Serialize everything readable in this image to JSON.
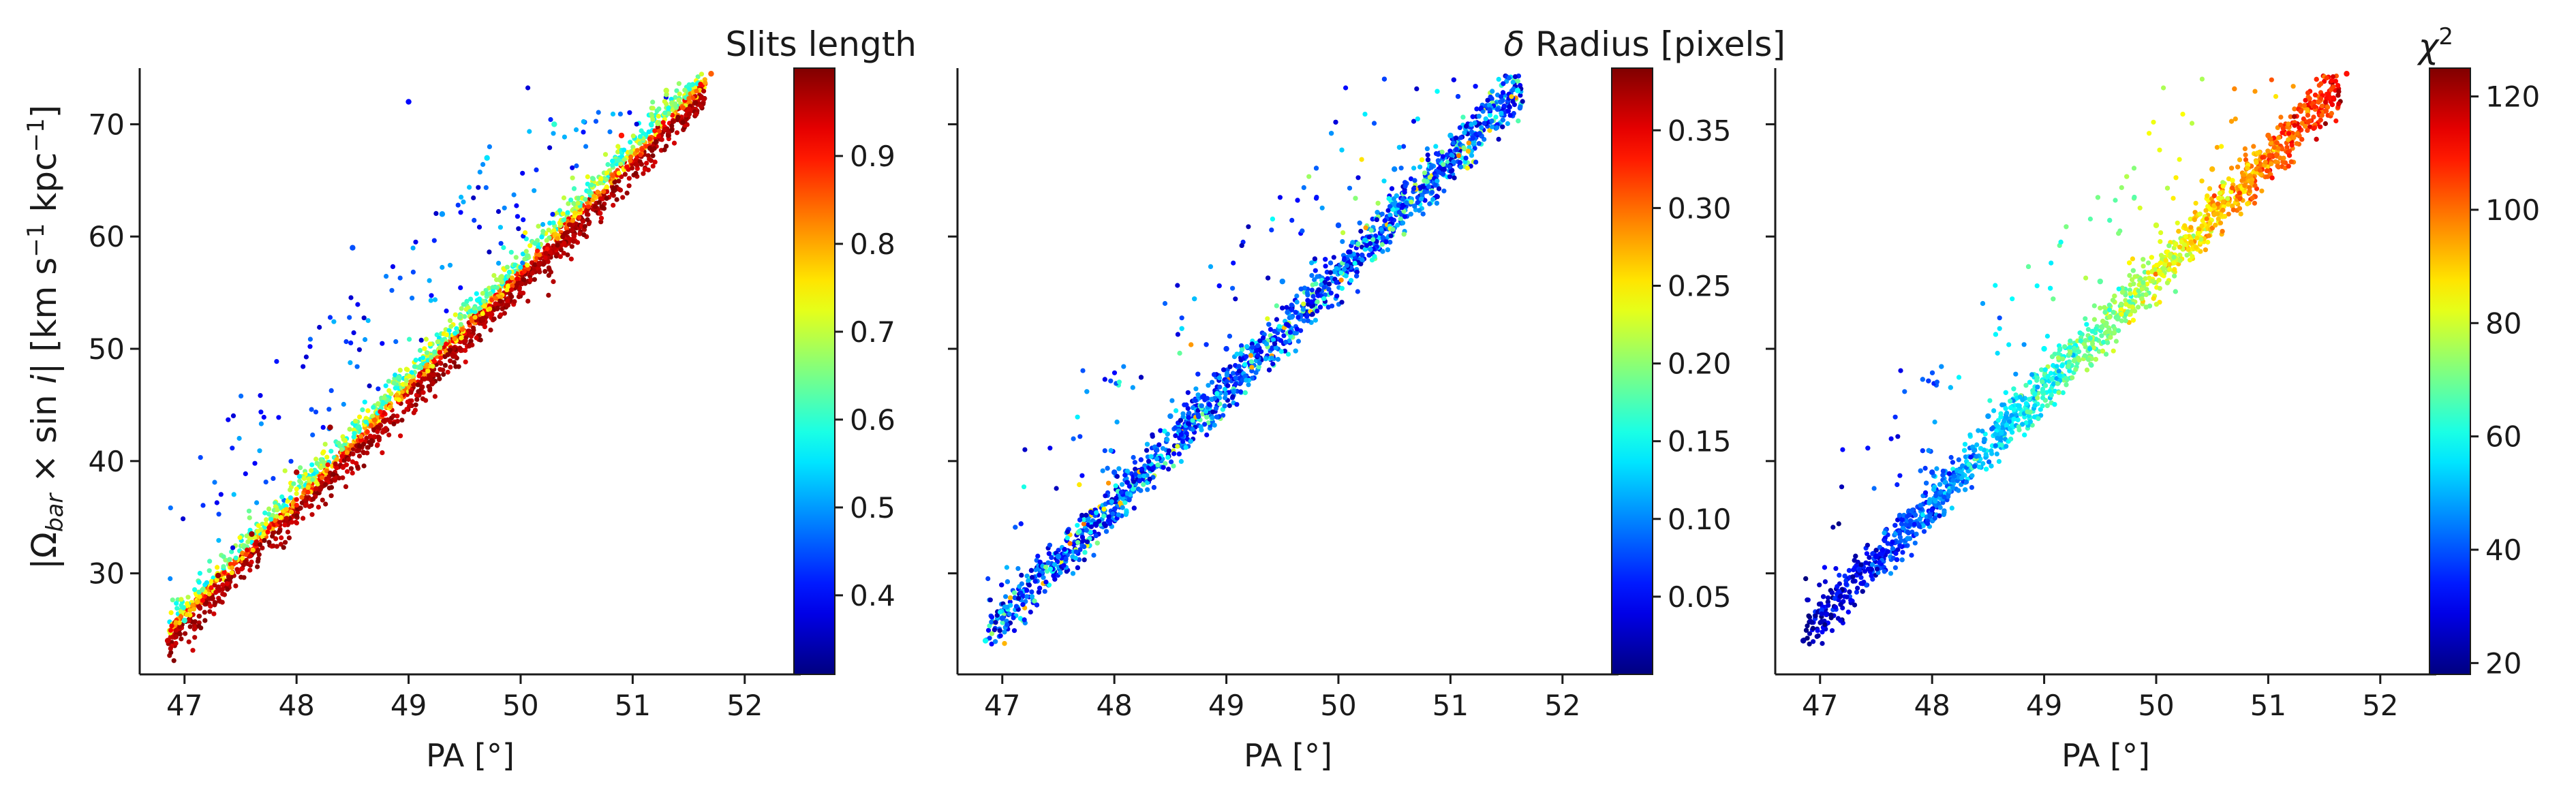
{
  "figure": {
    "shared_ylabel": "|Ω_bar × sin i|   [km s⁻¹ kpc⁻¹]",
    "shared_ylabel_main": "|Ω",
    "shared_ylabel_sub": "bar",
    "shared_ylabel_mid": " × sin ",
    "shared_ylabel_i": "i",
    "shared_ylabel_units_a": "|   [km s",
    "shared_ylabel_units_exp1": "−1",
    "shared_ylabel_units_b": " kpc",
    "shared_ylabel_units_exp2": "−1",
    "shared_ylabel_units_c": "]"
  },
  "chart_data": [
    {
      "type": "scatter",
      "xlabel": "PA [°]",
      "ylabel": "|Ω_bar × sin i|   [km s⁻¹ kpc⁻¹]",
      "xlim": [
        46.6,
        52.5
      ],
      "ylim": [
        21,
        75
      ],
      "xticks": [
        47,
        48,
        49,
        50,
        51,
        52
      ],
      "yticks": [
        30,
        40,
        50,
        60,
        70
      ],
      "colorbar": {
        "label": "Slits length",
        "colormap": "jet",
        "range": [
          0.31,
          1.0
        ],
        "ticks": [
          0.4,
          0.5,
          0.6,
          0.7,
          0.8,
          0.9
        ],
        "tick_labels": [
          "0.4",
          "0.5",
          "0.6",
          "0.7",
          "0.8",
          "0.9"
        ]
      },
      "trend": {
        "x": [
          46.8,
          51.7
        ],
        "y": [
          24,
          74
        ]
      },
      "color_pattern": "long slits (0.95–1.0, dark red) concentrated along the upper-left edge of the band at 47–49; short slits (0.3–0.5, blue) scattered above the band at x 48.3–50.5, y 48–72",
      "points": [
        {
          "x": 46.85,
          "y": 24.0,
          "c": 0.95
        },
        {
          "x": 47.0,
          "y": 25.8,
          "c": 0.6
        },
        {
          "x": 47.3,
          "y": 29.8,
          "c": 0.98
        },
        {
          "x": 47.6,
          "y": 33.5,
          "c": 0.98
        },
        {
          "x": 48.0,
          "y": 39.0,
          "c": 0.97
        },
        {
          "x": 48.3,
          "y": 43.0,
          "c": 0.98
        },
        {
          "x": 48.5,
          "y": 59.0,
          "c": 0.45
        },
        {
          "x": 49.0,
          "y": 72.0,
          "c": 0.4
        },
        {
          "x": 49.3,
          "y": 62.0,
          "c": 0.5
        },
        {
          "x": 49.7,
          "y": 67.0,
          "c": 0.55
        },
        {
          "x": 50.3,
          "y": 70.0,
          "c": 0.6
        },
        {
          "x": 50.9,
          "y": 69.0,
          "c": 0.9
        },
        {
          "x": 51.3,
          "y": 73.0,
          "c": 0.7
        },
        {
          "x": 51.7,
          "y": 74.5,
          "c": 0.85
        }
      ]
    },
    {
      "type": "scatter",
      "xlabel": "PA [°]",
      "xlim": [
        46.6,
        52.5
      ],
      "ylim": [
        21,
        75
      ],
      "xticks": [
        47,
        48,
        49,
        50,
        51,
        52
      ],
      "yticks": [
        30,
        40,
        50,
        60,
        70
      ],
      "colorbar": {
        "label": "δ Radius [pixels]",
        "label_prefix": "δ",
        "label_rest": " Radius [pixels]",
        "colormap": "jet",
        "range": [
          0.0,
          0.39
        ],
        "ticks": [
          0.05,
          0.1,
          0.15,
          0.2,
          0.25,
          0.3,
          0.35
        ],
        "tick_labels": [
          "0.05",
          "0.10",
          "0.15",
          "0.20",
          "0.25",
          "0.30",
          "0.35"
        ]
      },
      "trend": {
        "x": [
          46.8,
          51.7
        ],
        "y": [
          24,
          74
        ]
      },
      "color_pattern": "mostly small δ radius (0.02–0.12, blue); scattered points up to ~0.25 (cyan-green) along the lower edge",
      "points": [
        {
          "x": 46.85,
          "y": 24.0,
          "c": 0.15
        },
        {
          "x": 47.0,
          "y": 26.0,
          "c": 0.08
        },
        {
          "x": 47.5,
          "y": 31.5,
          "c": 0.1
        },
        {
          "x": 48.0,
          "y": 39.0,
          "c": 0.08
        },
        {
          "x": 48.5,
          "y": 44.0,
          "c": 0.1
        },
        {
          "x": 49.0,
          "y": 50.0,
          "c": 0.07
        },
        {
          "x": 49.5,
          "y": 56.0,
          "c": 0.1
        },
        {
          "x": 50.0,
          "y": 61.0,
          "c": 0.08
        },
        {
          "x": 50.5,
          "y": 66.0,
          "c": 0.1
        },
        {
          "x": 51.0,
          "y": 69.0,
          "c": 0.12
        },
        {
          "x": 51.6,
          "y": 73.0,
          "c": 0.15
        }
      ]
    },
    {
      "type": "scatter",
      "xlabel": "PA [°]",
      "xlim": [
        46.6,
        52.5
      ],
      "ylim": [
        21,
        75
      ],
      "xticks": [
        47,
        48,
        49,
        50,
        51,
        52
      ],
      "yticks": [
        30,
        40,
        50,
        60,
        70
      ],
      "colorbar": {
        "label": "χ²",
        "label_base": "χ",
        "label_exp": "2",
        "colormap": "jet",
        "range": [
          18,
          125
        ],
        "ticks": [
          20,
          40,
          60,
          80,
          100,
          120
        ],
        "tick_labels": [
          "20",
          "40",
          "60",
          "80",
          "100",
          "120"
        ]
      },
      "trend": {
        "x": [
          46.8,
          51.7
        ],
        "y": [
          24,
          74
        ]
      },
      "color_pattern": "χ² increases along the band: ~20 (dark blue) at PA 47, ~60 (cyan) near PA 49, ~100–110 (orange) at PA 50.5–51.7",
      "points": [
        {
          "x": 46.85,
          "y": 24.0,
          "c": 22
        },
        {
          "x": 47.5,
          "y": 31.5,
          "c": 30
        },
        {
          "x": 48.0,
          "y": 39.0,
          "c": 38
        },
        {
          "x": 48.5,
          "y": 44.0,
          "c": 48
        },
        {
          "x": 49.0,
          "y": 50.0,
          "c": 58
        },
        {
          "x": 49.5,
          "y": 56.0,
          "c": 68
        },
        {
          "x": 50.0,
          "y": 61.0,
          "c": 80
        },
        {
          "x": 50.5,
          "y": 66.0,
          "c": 92
        },
        {
          "x": 51.0,
          "y": 69.0,
          "c": 100
        },
        {
          "x": 51.7,
          "y": 74.5,
          "c": 110
        }
      ]
    }
  ]
}
